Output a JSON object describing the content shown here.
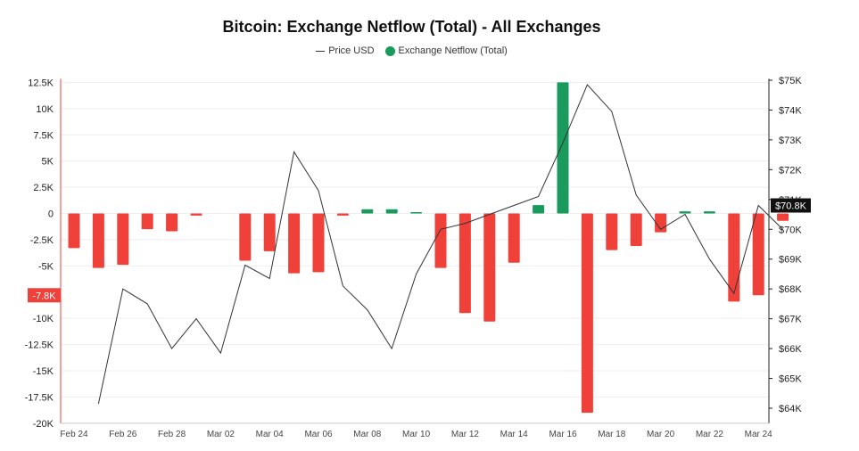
{
  "chart_data": {
    "type": "bar",
    "title": "Bitcoin: Exchange Netflow (Total) - All Exchanges",
    "legend": {
      "placement": "top-center"
    },
    "x_tick_labels": [
      "Feb 24",
      "Feb 26",
      "Feb 28",
      "Mar 02",
      "Mar 04",
      "Mar 06",
      "Mar 08",
      "Mar 10",
      "Mar 12",
      "Mar 14",
      "Mar 16",
      "Mar 18",
      "Mar 20",
      "Mar 22",
      "Mar 24"
    ],
    "dates": [
      "2024-02-24",
      "2024-02-25",
      "2024-02-26",
      "2024-02-27",
      "2024-02-28",
      "2024-02-29",
      "2024-03-01",
      "2024-03-02",
      "2024-03-03",
      "2024-03-04",
      "2024-03-05",
      "2024-03-06",
      "2024-03-07",
      "2024-03-08",
      "2024-03-09",
      "2024-03-10",
      "2024-03-11",
      "2024-03-12",
      "2024-03-13",
      "2024-03-14",
      "2024-03-15",
      "2024-03-16",
      "2024-03-17",
      "2024-03-18",
      "2024-03-19",
      "2024-03-20",
      "2024-03-21",
      "2024-03-22",
      "2024-03-23",
      "2024-03-24"
    ],
    "series": [
      {
        "name": "Exchange Netflow (Total)",
        "type": "bar",
        "axis": "left",
        "positive_color": "#1a9a5c",
        "negative_color": "#f0403a",
        "values": [
          -3300,
          -5200,
          -4900,
          -1500,
          -1700,
          -200,
          0,
          -4500,
          -3600,
          -5700,
          -5600,
          -200,
          400,
          400,
          100,
          -5200,
          -9500,
          -10300,
          -4700,
          800,
          12500,
          -19000,
          -3500,
          -3100,
          -1800,
          200,
          200,
          -8400,
          -7800,
          -700
        ]
      },
      {
        "name": "Price USD",
        "type": "line",
        "axis": "right",
        "color": "#333333",
        "values": [
          null,
          64150,
          68000,
          67500,
          66000,
          67000,
          65850,
          68800,
          68350,
          72600,
          71300,
          68100,
          67300,
          66000,
          68500,
          70000,
          70200,
          70500,
          70800,
          71100,
          72900,
          74850,
          73950,
          71150,
          70000,
          70500,
          69000,
          67850,
          70800,
          70000
        ]
      }
    ],
    "y_left": {
      "ticks": [
        12500,
        10000,
        7500,
        5000,
        2500,
        0,
        -2500,
        -5000,
        -10000,
        -12500,
        -15000,
        -17500,
        -20000
      ],
      "tick_labels": [
        "12.5K",
        "10K",
        "7.5K",
        "5K",
        "2.5K",
        "0",
        "-2.5K",
        "-5K",
        "-10K",
        "-12.5K",
        "-15K",
        "-17.5K",
        "-20K"
      ],
      "range": [
        -20000,
        12500
      ],
      "highlight_value": -7800,
      "highlight_label": "-7.8K",
      "highlight_color": "#f0403a"
    },
    "y_right": {
      "ticks": [
        75000,
        74000,
        73000,
        72000,
        71000,
        70000,
        69000,
        68000,
        67000,
        66000,
        65000,
        64000
      ],
      "tick_labels": [
        "$75K",
        "$74K",
        "$73K",
        "$72K",
        "$71K",
        "$70K",
        "$69K",
        "$68K",
        "$67K",
        "$66K",
        "$65K",
        "$64K"
      ],
      "range": [
        64000,
        75000
      ],
      "highlight_value": 70800,
      "highlight_label": "$70.8K",
      "highlight_color": "#111111"
    },
    "grid": true
  }
}
